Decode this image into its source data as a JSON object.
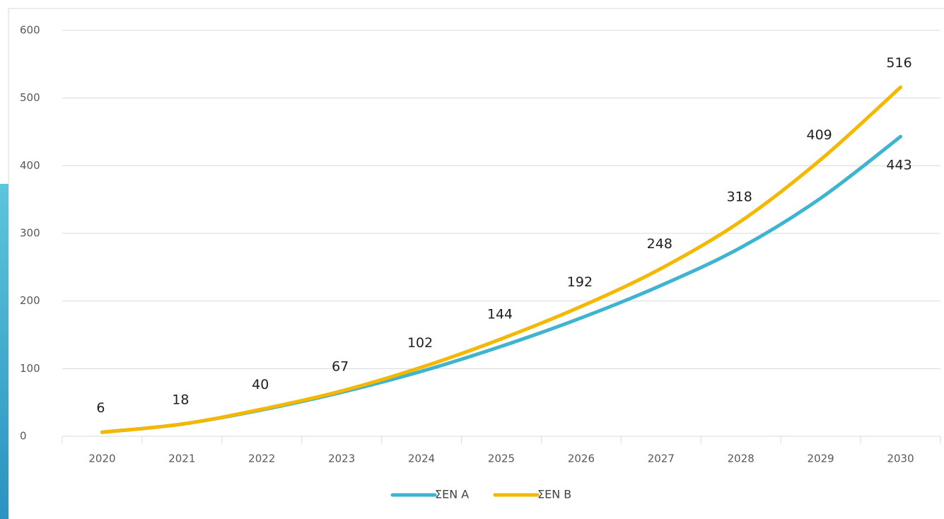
{
  "chart_data": {
    "type": "line",
    "categories": [
      "2020",
      "2021",
      "2022",
      "2023",
      "2024",
      "2025",
      "2026",
      "2027",
      "2028",
      "2029",
      "2030"
    ],
    "series": [
      {
        "name": "ΣΕΝ Α",
        "color": "#3fb4d0",
        "values": [
          6,
          18,
          39,
          65,
          96,
          133,
          175,
          223,
          279,
          352,
          443
        ],
        "data_labels": "last",
        "label_position": "below"
      },
      {
        "name": "ΣΕΝ Β",
        "color": "#f5b800",
        "values": [
          6,
          18,
          40,
          67,
          102,
          144,
          192,
          248,
          318,
          409,
          516
        ],
        "data_labels": "all",
        "label_position": "above"
      }
    ],
    "ylim": [
      0,
      600
    ],
    "yticks": [
      0,
      100,
      200,
      300,
      400,
      500,
      600
    ],
    "grid": true,
    "smooth": true,
    "legend": "bottom"
  }
}
